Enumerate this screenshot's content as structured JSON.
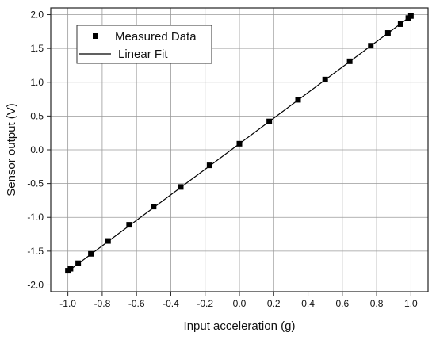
{
  "chart_data": {
    "type": "scatter",
    "title": "",
    "xlabel": "Input acceleration (g)",
    "ylabel": "Sensor output (V)",
    "xlim": [
      -1.1,
      1.1
    ],
    "ylim": [
      -2.1,
      2.1
    ],
    "xticks": [
      -1.0,
      -0.8,
      -0.6,
      -0.4,
      -0.2,
      0.0,
      0.2,
      0.4,
      0.6,
      0.8,
      1.0
    ],
    "yticks": [
      -2.0,
      -1.5,
      -1.0,
      -0.5,
      0.0,
      0.5,
      1.0,
      1.5,
      2.0
    ],
    "xtick_labels": [
      "-1.0",
      "-0.8",
      "-0.6",
      "-0.4",
      "-0.2",
      "0.0",
      "0.2",
      "0.4",
      "0.6",
      "0.8",
      "1.0"
    ],
    "ytick_labels": [
      "-2.0",
      "-1.5",
      "-1.0",
      "-0.5",
      "0.0",
      "0.5",
      "1.0",
      "1.5",
      "2.0"
    ],
    "grid": true,
    "legend_position": "top-left",
    "series": [
      {
        "name": "Measured Data",
        "kind": "scatter",
        "marker": "square",
        "color": "#000000",
        "x": [
          -1.0,
          -0.985,
          -0.94,
          -0.866,
          -0.766,
          -0.643,
          -0.5,
          -0.342,
          -0.174,
          0.0,
          0.174,
          0.342,
          0.5,
          0.643,
          0.766,
          0.866,
          0.94,
          0.985,
          1.0
        ],
        "y": [
          -1.79,
          -1.76,
          -1.68,
          -1.54,
          -1.35,
          -1.11,
          -0.84,
          -0.55,
          -0.23,
          0.09,
          0.42,
          0.74,
          1.04,
          1.31,
          1.54,
          1.73,
          1.86,
          1.95,
          1.98
        ]
      },
      {
        "name": "Linear Fit",
        "kind": "line",
        "color": "#000000",
        "x": [
          -1.0,
          1.0
        ],
        "y": [
          -1.8,
          1.98
        ]
      }
    ]
  }
}
